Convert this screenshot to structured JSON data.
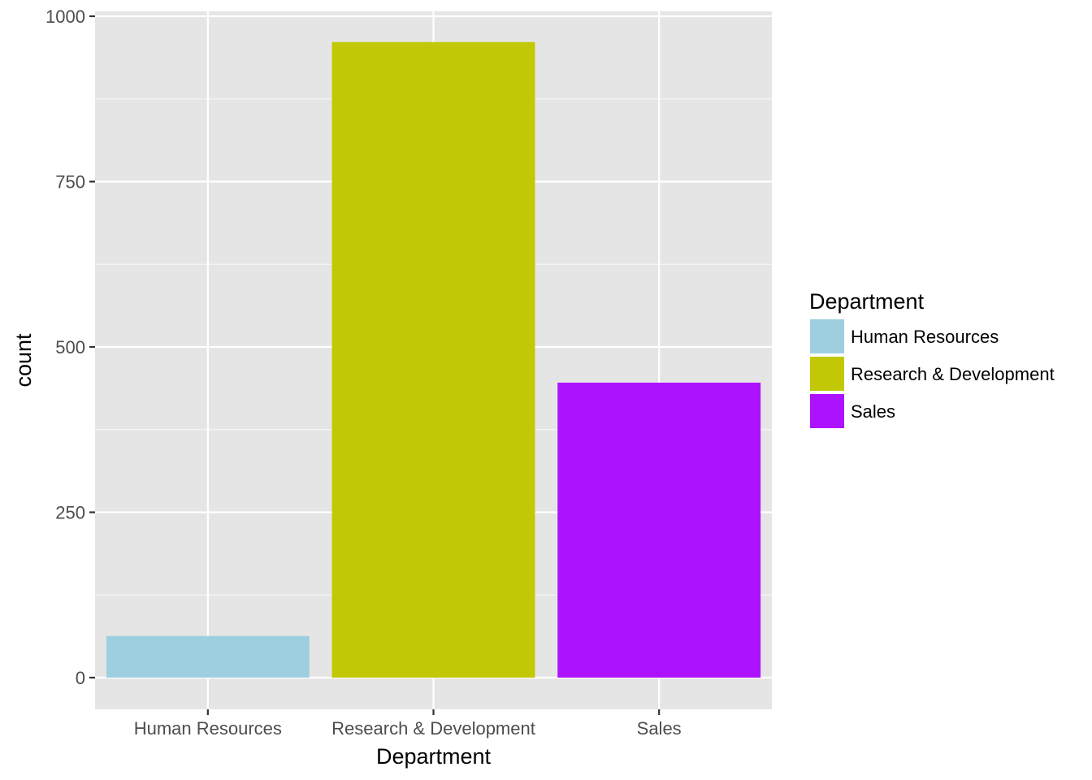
{
  "chart_data": {
    "type": "bar",
    "categories": [
      "Human Resources",
      "Research & Development",
      "Sales"
    ],
    "values": [
      63,
      961,
      446
    ],
    "title": "",
    "xlabel": "Department",
    "ylabel": "count",
    "ylim": [
      0,
      1000
    ],
    "yticks": [
      0,
      250,
      500,
      750,
      1000
    ],
    "grid": true,
    "legend": {
      "title": "Department",
      "placement": "right",
      "entries": [
        "Human Resources",
        "Research & Development",
        "Sales"
      ]
    },
    "colors": [
      "#9ecfe0",
      "#c2c706",
      "#ad12ff"
    ],
    "panel_background": "#e5e5e5",
    "grid_color": "#ffffff"
  }
}
